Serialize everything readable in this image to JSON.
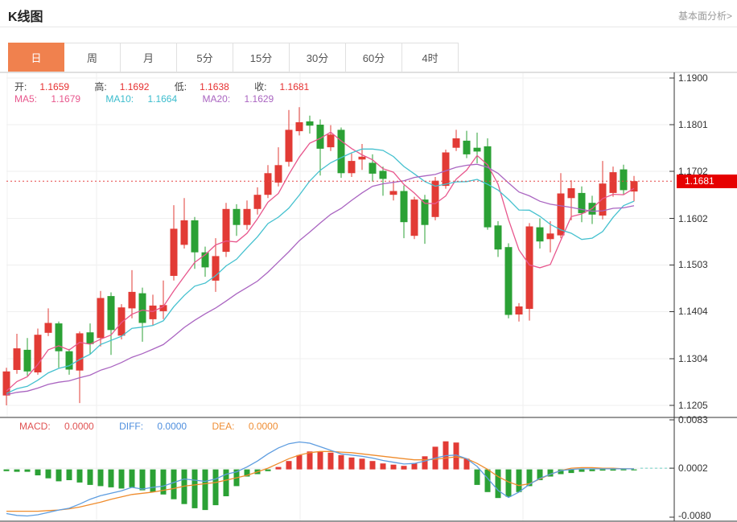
{
  "header": {
    "title": "K线图",
    "link": "基本面分析>"
  },
  "tabs": [
    {
      "label": "日",
      "active": true
    },
    {
      "label": "周",
      "active": false
    },
    {
      "label": "月",
      "active": false
    },
    {
      "label": "5分",
      "active": false
    },
    {
      "label": "15分",
      "active": false
    },
    {
      "label": "30分",
      "active": false
    },
    {
      "label": "60分",
      "active": false
    },
    {
      "label": "4时",
      "active": false
    }
  ],
  "ohlc": {
    "open_label": "开:",
    "open": "1.1659",
    "high_label": "高:",
    "high": "1.1692",
    "low_label": "低:",
    "low": "1.1638",
    "close_label": "收:",
    "close": "1.1681"
  },
  "ma": {
    "ma5_label": "MA5:",
    "ma5": "1.1679",
    "ma10_label": "MA10:",
    "ma10": "1.1664",
    "ma20_label": "MA20:",
    "ma20": "1.1629"
  },
  "macd_legend": {
    "macd_label": "MACD:",
    "macd": "0.0000",
    "diff_label": "DIFF:",
    "diff": "0.0000",
    "dea_label": "DEA:",
    "dea": "0.0000"
  },
  "colors": {
    "up": "#e23b35",
    "down": "#2ba135",
    "ma5": "#e8578d",
    "ma10": "#45c1cf",
    "ma20": "#aa65c1",
    "diff": "#5e9de0",
    "dea": "#ef8c2d",
    "price_line": "#e64545",
    "badge": "#e60000",
    "tab_active": "#f0814e",
    "grid": "#efefef",
    "axis": "#333333",
    "dash_right": "#6fcfc3"
  },
  "chart_data": {
    "type": "candlestick",
    "title": "K线图",
    "legend_position": "top-left",
    "grid": true,
    "current_price": "1.1681",
    "price_axis_ticks": [
      "1.1900",
      "1.1801",
      "1.1702",
      "1.1602",
      "1.1503",
      "1.1404",
      "1.1304",
      "1.1205"
    ],
    "price_range": [
      1.1205,
      1.19
    ],
    "ma_periods": [
      5,
      10,
      20
    ],
    "candles_ohlc": [
      [
        1.1226,
        1.1285,
        1.1205,
        1.1277
      ],
      [
        1.128,
        1.1357,
        1.1272,
        1.1326
      ],
      [
        1.1323,
        1.1348,
        1.1268,
        1.1277
      ],
      [
        1.1275,
        1.1368,
        1.127,
        1.1355
      ],
      [
        1.1359,
        1.1411,
        1.1352,
        1.138
      ],
      [
        1.1379,
        1.1383,
        1.1285,
        1.132
      ],
      [
        1.132,
        1.1325,
        1.127,
        1.1281
      ],
      [
        1.1279,
        1.1362,
        1.121,
        1.1358
      ],
      [
        1.136,
        1.1379,
        1.1314,
        1.1335
      ],
      [
        1.1348,
        1.1448,
        1.133,
        1.1433
      ],
      [
        1.1437,
        1.1445,
        1.1312,
        1.1365
      ],
      [
        1.1353,
        1.142,
        1.1345,
        1.1413
      ],
      [
        1.1411,
        1.1492,
        1.139,
        1.1446
      ],
      [
        1.1443,
        1.1455,
        1.134,
        1.138
      ],
      [
        1.1388,
        1.144,
        1.1375,
        1.1417
      ],
      [
        1.1405,
        1.147,
        1.1388,
        1.1418
      ],
      [
        1.148,
        1.163,
        1.147,
        1.158
      ],
      [
        1.1546,
        1.1645,
        1.1538,
        1.1598
      ],
      [
        1.1598,
        1.1605,
        1.1495,
        1.153
      ],
      [
        1.153,
        1.1542,
        1.1478,
        1.1498
      ],
      [
        1.147,
        1.156,
        1.1446,
        1.1522
      ],
      [
        1.1531,
        1.1635,
        1.152,
        1.1622
      ],
      [
        1.1622,
        1.1632,
        1.1565,
        1.1588
      ],
      [
        1.1588,
        1.164,
        1.1578,
        1.1622
      ],
      [
        1.1622,
        1.1668,
        1.161,
        1.1652
      ],
      [
        1.1652,
        1.1715,
        1.1645,
        1.1698
      ],
      [
        1.1678,
        1.1753,
        1.167,
        1.1715
      ],
      [
        1.1722,
        1.1832,
        1.1712,
        1.179
      ],
      [
        1.1787,
        1.1838,
        1.1778,
        1.1806
      ],
      [
        1.1808,
        1.182,
        1.1782,
        1.1799
      ],
      [
        1.1801,
        1.1812,
        1.1693,
        1.175
      ],
      [
        1.1753,
        1.18,
        1.1745,
        1.178
      ],
      [
        1.179,
        1.1795,
        1.1688,
        1.1698
      ],
      [
        1.1698,
        1.174,
        1.169,
        1.1724
      ],
      [
        1.1727,
        1.176,
        1.1705,
        1.1733
      ],
      [
        1.172,
        1.1738,
        1.168,
        1.1697
      ],
      [
        1.1703,
        1.1712,
        1.165,
        1.1686
      ],
      [
        1.1652,
        1.1678,
        1.164,
        1.166
      ],
      [
        1.166,
        1.1672,
        1.156,
        1.1594
      ],
      [
        1.1565,
        1.1648,
        1.1558,
        1.1642
      ],
      [
        1.1642,
        1.1652,
        1.1548,
        1.1588
      ],
      [
        1.1605,
        1.169,
        1.1598,
        1.1682
      ],
      [
        1.1671,
        1.1748,
        1.1665,
        1.1742
      ],
      [
        1.1752,
        1.179,
        1.1745,
        1.1772
      ],
      [
        1.1767,
        1.1788,
        1.173,
        1.1738
      ],
      [
        1.1752,
        1.1784,
        1.1719,
        1.1744
      ],
      [
        1.1755,
        1.1772,
        1.1578,
        1.1583
      ],
      [
        1.1587,
        1.1596,
        1.152,
        1.1536
      ],
      [
        1.1541,
        1.1549,
        1.139,
        1.1397
      ],
      [
        1.1398,
        1.1422,
        1.1383,
        1.1415
      ],
      [
        1.141,
        1.1592,
        1.1385,
        1.1585
      ],
      [
        1.1583,
        1.1602,
        1.1538,
        1.1553
      ],
      [
        1.1558,
        1.1596,
        1.153,
        1.157
      ],
      [
        1.1566,
        1.1698,
        1.156,
        1.1655
      ],
      [
        1.1645,
        1.1683,
        1.1598,
        1.1666
      ],
      [
        1.1656,
        1.167,
        1.1594,
        1.1613
      ],
      [
        1.1635,
        1.165,
        1.159,
        1.161
      ],
      [
        1.1608,
        1.1724,
        1.16,
        1.1676
      ],
      [
        1.1656,
        1.1712,
        1.1648,
        1.17
      ],
      [
        1.1706,
        1.1716,
        1.1652,
        1.1662
      ],
      [
        1.1659,
        1.1692,
        1.1638,
        1.1681
      ]
    ],
    "macd": {
      "axis_ticks": [
        "0.0083",
        "0.0002",
        "-0.0080"
      ],
      "range": [
        -0.008,
        0.0083
      ],
      "hist": [
        -0.0003,
        -0.0004,
        -0.0004,
        -0.001,
        -0.0015,
        -0.002,
        -0.0018,
        -0.0022,
        -0.0026,
        -0.0028,
        -0.003,
        -0.0032,
        -0.003,
        -0.0035,
        -0.0038,
        -0.0042,
        -0.005,
        -0.0058,
        -0.0065,
        -0.0068,
        -0.006,
        -0.0045,
        -0.0028,
        -0.0012,
        -0.0008,
        -0.0003,
        0.0004,
        0.0014,
        0.0024,
        0.003,
        0.003,
        0.0028,
        0.0024,
        0.002,
        0.0018,
        0.0014,
        0.001,
        0.0008,
        0.0006,
        0.001,
        0.0022,
        0.0038,
        0.0047,
        0.0045,
        0.0018,
        -0.0026,
        -0.0038,
        -0.0048,
        -0.0046,
        -0.0038,
        -0.0028,
        -0.0018,
        -0.0012,
        -0.0008,
        -0.0006,
        -0.0004,
        -0.0003,
        -0.0002,
        -0.0002,
        -0.0001,
        -0.0001
      ],
      "diff": [
        -0.0074,
        -0.0077,
        -0.0078,
        -0.0076,
        -0.0072,
        -0.0068,
        -0.0065,
        -0.0058,
        -0.005,
        -0.0044,
        -0.004,
        -0.0036,
        -0.003,
        -0.0033,
        -0.003,
        -0.0028,
        -0.0022,
        -0.0016,
        -0.0018,
        -0.002,
        -0.0016,
        -0.0008,
        -0.0004,
        0.0004,
        0.0014,
        0.0026,
        0.0036,
        0.0043,
        0.0046,
        0.0044,
        0.0038,
        0.0032,
        0.0026,
        0.0024,
        0.0022,
        0.0019,
        0.0015,
        0.0012,
        0.0009,
        0.001,
        0.0014,
        0.0019,
        0.0023,
        0.0024,
        0.0018,
        0.0005,
        -0.0015,
        -0.0035,
        -0.0047,
        -0.0038,
        -0.0025,
        -0.0015,
        -0.0008,
        -0.0002,
        0.0,
        0.0001,
        0.0001,
        0.0001,
        0.0001,
        0.0001,
        0.0001
      ],
      "dea": [
        -0.007,
        -0.007,
        -0.007,
        -0.007,
        -0.0069,
        -0.0068,
        -0.0066,
        -0.0063,
        -0.0059,
        -0.0055,
        -0.005,
        -0.0046,
        -0.0042,
        -0.004,
        -0.0038,
        -0.0035,
        -0.0032,
        -0.0028,
        -0.0026,
        -0.0024,
        -0.0022,
        -0.0018,
        -0.0014,
        -0.001,
        -0.0004,
        0.0002,
        0.001,
        0.0018,
        0.0024,
        0.0028,
        0.003,
        0.003,
        0.0029,
        0.0028,
        0.0026,
        0.0024,
        0.0022,
        0.002,
        0.0018,
        0.0016,
        0.0016,
        0.0017,
        0.0019,
        0.0021,
        0.0018,
        0.001,
        0.0,
        -0.0012,
        -0.0021,
        -0.0027,
        -0.0024,
        -0.0016,
        -0.0008,
        -0.0002,
        0.0002,
        0.0003,
        0.0003,
        0.0002,
        0.0002,
        0.0001,
        0.0001
      ]
    }
  }
}
